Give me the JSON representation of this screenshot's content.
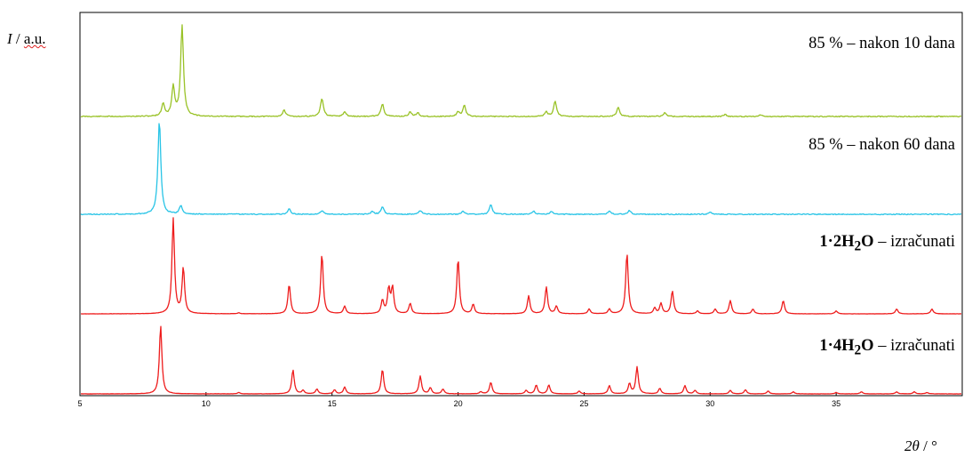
{
  "chart_data": {
    "type": "line",
    "title": "",
    "ylabel": {
      "symbol": "I",
      "unit": "a.u."
    },
    "xlabel": {
      "symbol": "2θ",
      "unit": "°"
    },
    "xlim": [
      5,
      40
    ],
    "xticks": [
      5,
      10,
      15,
      20,
      25,
      30,
      35
    ],
    "grid": false,
    "series": [
      {
        "name": "85 % – nakon 10 dana",
        "label_parts": {
          "bold": "",
          "sub": "",
          "rest": "85 % – nakon 10 dana"
        },
        "color": "#99c226",
        "peaks": [
          [
            8.3,
            0.14
          ],
          [
            8.7,
            0.32
          ],
          [
            9.05,
            1.0
          ],
          [
            13.1,
            0.07
          ],
          [
            14.6,
            0.2
          ],
          [
            15.5,
            0.05
          ],
          [
            17.0,
            0.14
          ],
          [
            18.1,
            0.05
          ],
          [
            18.4,
            0.04
          ],
          [
            20.0,
            0.05
          ],
          [
            20.25,
            0.12
          ],
          [
            23.5,
            0.05
          ],
          [
            23.85,
            0.17
          ],
          [
            26.35,
            0.1
          ],
          [
            28.2,
            0.04
          ],
          [
            30.6,
            0.02
          ],
          [
            32.0,
            0.02
          ]
        ]
      },
      {
        "name": "85 % – nakon 60 dana",
        "label_parts": {
          "bold": "",
          "sub": "",
          "rest": "85 % – nakon 60 dana"
        },
        "color": "#28c4e6",
        "peaks": [
          [
            8.15,
            1.0
          ],
          [
            9.0,
            0.09
          ],
          [
            13.3,
            0.06
          ],
          [
            14.6,
            0.04
          ],
          [
            16.6,
            0.03
          ],
          [
            17.0,
            0.08
          ],
          [
            18.5,
            0.04
          ],
          [
            20.2,
            0.03
          ],
          [
            21.3,
            0.1
          ],
          [
            23.0,
            0.03
          ],
          [
            23.7,
            0.03
          ],
          [
            26.0,
            0.03
          ],
          [
            26.8,
            0.04
          ],
          [
            30.0,
            0.02
          ]
        ]
      },
      {
        "name": "1·2H2O – izračunati",
        "label_parts": {
          "bold": "1·2H",
          "sub": "2",
          "bold_after": "O",
          "rest": " – izračunati"
        },
        "color": "#ee1c1c",
        "peaks": [
          [
            8.7,
            1.0
          ],
          [
            9.1,
            0.48
          ],
          [
            11.3,
            0.01
          ],
          [
            13.3,
            0.31
          ],
          [
            14.6,
            0.63
          ],
          [
            15.5,
            0.08
          ],
          [
            17.0,
            0.14
          ],
          [
            17.25,
            0.26
          ],
          [
            17.4,
            0.27
          ],
          [
            18.1,
            0.11
          ],
          [
            20.0,
            0.58
          ],
          [
            20.6,
            0.1
          ],
          [
            22.8,
            0.19
          ],
          [
            23.5,
            0.28
          ],
          [
            23.9,
            0.08
          ],
          [
            25.2,
            0.05
          ],
          [
            26.0,
            0.05
          ],
          [
            26.7,
            0.64
          ],
          [
            27.8,
            0.06
          ],
          [
            28.05,
            0.11
          ],
          [
            28.5,
            0.24
          ],
          [
            29.5,
            0.03
          ],
          [
            30.2,
            0.05
          ],
          [
            30.8,
            0.14
          ],
          [
            31.7,
            0.05
          ],
          [
            32.9,
            0.14
          ],
          [
            35.0,
            0.03
          ],
          [
            37.4,
            0.05
          ],
          [
            38.8,
            0.05
          ]
        ]
      },
      {
        "name": "1·4H2O – izračunati",
        "label_parts": {
          "bold": "1·4H",
          "sub": "2",
          "bold_after": "O",
          "rest": " – izračunati"
        },
        "color": "#ee1c1c",
        "peaks": [
          [
            8.2,
            1.0
          ],
          [
            11.3,
            0.02
          ],
          [
            13.45,
            0.35
          ],
          [
            13.85,
            0.05
          ],
          [
            14.4,
            0.07
          ],
          [
            15.1,
            0.06
          ],
          [
            15.5,
            0.1
          ],
          [
            17.0,
            0.36
          ],
          [
            18.5,
            0.26
          ],
          [
            18.9,
            0.09
          ],
          [
            19.4,
            0.07
          ],
          [
            20.9,
            0.03
          ],
          [
            21.3,
            0.17
          ],
          [
            22.7,
            0.05
          ],
          [
            23.1,
            0.13
          ],
          [
            23.6,
            0.13
          ],
          [
            24.8,
            0.04
          ],
          [
            26.0,
            0.12
          ],
          [
            26.8,
            0.15
          ],
          [
            27.1,
            0.39
          ],
          [
            28.0,
            0.08
          ],
          [
            29.0,
            0.12
          ],
          [
            29.4,
            0.05
          ],
          [
            30.8,
            0.05
          ],
          [
            31.4,
            0.06
          ],
          [
            32.3,
            0.04
          ],
          [
            33.3,
            0.03
          ],
          [
            35.0,
            0.02
          ],
          [
            36.0,
            0.03
          ],
          [
            37.4,
            0.03
          ],
          [
            38.1,
            0.03
          ],
          [
            38.6,
            0.02
          ]
        ]
      }
    ]
  }
}
